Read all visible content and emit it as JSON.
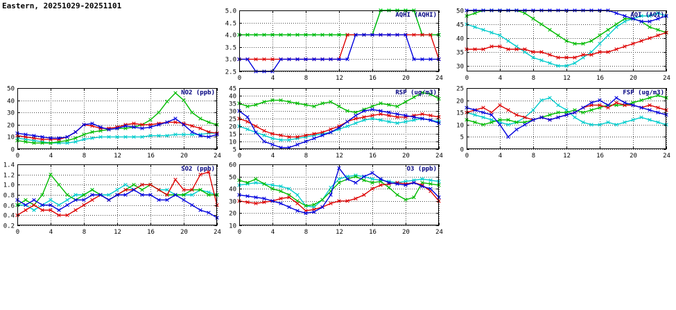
{
  "page_title": "Eastern, 20251029-20251101",
  "colors": {
    "chart_title": "#000080",
    "axis_text": "#000000",
    "grid": "#444444",
    "border": "#000000",
    "background": "#ffffff",
    "series": {
      "green": "#00bb00",
      "red": "#dd0000",
      "blue": "#0000dd",
      "cyan": "#00cccc"
    }
  },
  "hours": [
    0,
    1,
    2,
    3,
    4,
    5,
    6,
    7,
    8,
    9,
    10,
    11,
    12,
    13,
    14,
    15,
    16,
    17,
    18,
    19,
    20,
    21,
    22,
    23,
    24
  ],
  "chart_data": [
    {
      "id": "aqhi",
      "type": "line",
      "title": "AQHI (AQHI)",
      "xlabel": "",
      "ylabel": "",
      "legend": "none",
      "grid": "dotted",
      "xlim": [
        0,
        24
      ],
      "xticks": [
        0,
        4,
        8,
        12,
        16,
        20,
        24
      ],
      "ylim": [
        2.5,
        5.0
      ],
      "yticks": [
        2.5,
        3.0,
        3.5,
        4.0,
        4.5,
        5.0
      ],
      "ytick_labels": [
        "2.5",
        "3.0",
        "3.5",
        "4.0",
        "4.5",
        "5.0"
      ],
      "series": [
        {
          "name": "cyan",
          "color": "#00cccc",
          "values": [
            4,
            4,
            4,
            4,
            4,
            4,
            4,
            4,
            4,
            4,
            4,
            4,
            4,
            4,
            4,
            4,
            4,
            5,
            5,
            5,
            5,
            5,
            4,
            4,
            4
          ]
        },
        {
          "name": "green",
          "color": "#00bb00",
          "values": [
            4,
            4,
            4,
            4,
            4,
            4,
            4,
            4,
            4,
            4,
            4,
            4,
            4,
            4,
            4,
            4,
            4,
            5,
            5,
            5,
            5,
            5,
            4,
            4,
            4
          ]
        },
        {
          "name": "red",
          "color": "#dd0000",
          "values": [
            3,
            3,
            3,
            3,
            3,
            3,
            3,
            3,
            3,
            3,
            3,
            3,
            3,
            4,
            4,
            4,
            4,
            4,
            4,
            4,
            4,
            4,
            4,
            4,
            3
          ]
        },
        {
          "name": "blue",
          "color": "#0000dd",
          "values": [
            3,
            3,
            2.5,
            2.5,
            2.5,
            3,
            3,
            3,
            3,
            3,
            3,
            3,
            3,
            3,
            4,
            4,
            4,
            4,
            4,
            4,
            4,
            3,
            3,
            3,
            3
          ]
        }
      ]
    },
    {
      "id": "aqi",
      "type": "line",
      "title": "AQI (AQI)",
      "xlabel": "",
      "ylabel": "",
      "legend": "none",
      "grid": "dotted",
      "xlim": [
        0,
        24
      ],
      "xticks": [
        0,
        4,
        8,
        12,
        16,
        20,
        24
      ],
      "ylim": [
        28,
        50
      ],
      "yticks": [
        30,
        35,
        40,
        45,
        50
      ],
      "ytick_labels": [
        "30",
        "35",
        "40",
        "45",
        "50"
      ],
      "series": [
        {
          "name": "cyan",
          "color": "#00cccc",
          "values": [
            45,
            44,
            43,
            42,
            41,
            39,
            37,
            35,
            33,
            32,
            31,
            30,
            30,
            31,
            33,
            35,
            38,
            41,
            44,
            46,
            47,
            48,
            48,
            49,
            48
          ]
        },
        {
          "name": "green",
          "color": "#00bb00",
          "values": [
            48,
            49,
            50,
            50,
            50,
            50,
            50,
            49,
            47,
            45,
            43,
            41,
            39,
            38,
            38,
            39,
            41,
            43,
            45,
            47,
            47,
            46,
            44,
            43,
            42
          ]
        },
        {
          "name": "red",
          "color": "#dd0000",
          "values": [
            36,
            36,
            36,
            37,
            37,
            36,
            36,
            36,
            35,
            35,
            34,
            33,
            33,
            33,
            34,
            34,
            35,
            35,
            36,
            37,
            38,
            39,
            40,
            41,
            42
          ]
        },
        {
          "name": "blue",
          "color": "#0000dd",
          "values": [
            50,
            50,
            50,
            50,
            50,
            50,
            50,
            50,
            50,
            50,
            50,
            50,
            50,
            50,
            50,
            50,
            50,
            50,
            49,
            48,
            47,
            46,
            46,
            47,
            48
          ]
        }
      ]
    },
    {
      "id": "no2",
      "type": "line",
      "title": "NO2 (ppb)",
      "xlabel": "",
      "ylabel": "",
      "legend": "none",
      "grid": "dotted",
      "xlim": [
        0,
        24
      ],
      "xticks": [
        0,
        4,
        8,
        12,
        16,
        20,
        24
      ],
      "ylim": [
        0,
        50
      ],
      "yticks": [
        0,
        10,
        20,
        30,
        40,
        50
      ],
      "ytick_labels": [
        "0",
        "10",
        "20",
        "30",
        "40",
        "50"
      ],
      "series": [
        {
          "name": "cyan",
          "color": "#00cccc",
          "values": [
            9,
            8,
            7,
            6,
            5,
            5,
            5,
            6,
            8,
            9,
            10,
            10,
            10,
            10,
            10,
            10,
            11,
            11,
            11,
            12,
            12,
            12,
            12,
            13,
            13
          ]
        },
        {
          "name": "green",
          "color": "#00bb00",
          "values": [
            7,
            6,
            5,
            5,
            5,
            6,
            7,
            9,
            12,
            14,
            15,
            16,
            17,
            17,
            18,
            20,
            24,
            30,
            39,
            46,
            40,
            30,
            25,
            22,
            20
          ]
        },
        {
          "name": "red",
          "color": "#dd0000",
          "values": [
            11,
            10,
            9,
            8,
            8,
            8,
            10,
            14,
            20,
            19,
            17,
            17,
            18,
            20,
            21,
            20,
            20,
            21,
            22,
            22,
            21,
            19,
            17,
            14,
            13
          ]
        },
        {
          "name": "blue",
          "color": "#0000dd",
          "values": [
            13,
            12,
            11,
            10,
            9,
            9,
            10,
            14,
            20,
            21,
            18,
            16,
            17,
            19,
            18,
            17,
            18,
            20,
            22,
            25,
            20,
            14,
            11,
            10,
            12
          ]
        }
      ]
    },
    {
      "id": "rsp",
      "type": "line",
      "title": "RSP (ug/m3)",
      "xlabel": "",
      "ylabel": "",
      "legend": "none",
      "grid": "dotted",
      "xlim": [
        0,
        24
      ],
      "xticks": [
        0,
        4,
        8,
        12,
        16,
        20,
        24
      ],
      "ylim": [
        5,
        45
      ],
      "yticks": [
        5,
        10,
        15,
        20,
        25,
        30,
        35,
        40,
        45
      ],
      "ytick_labels": [
        "5",
        "10",
        "15",
        "20",
        "25",
        "30",
        "35",
        "40",
        "45"
      ],
      "series": [
        {
          "name": "cyan",
          "color": "#00cccc",
          "values": [
            20,
            18,
            16,
            14,
            12,
            11,
            11,
            12,
            13,
            14,
            15,
            16,
            18,
            20,
            22,
            24,
            25,
            24,
            23,
            22,
            23,
            24,
            25,
            24,
            23
          ]
        },
        {
          "name": "green",
          "color": "#00bb00",
          "values": [
            35,
            33,
            34,
            36,
            37,
            37,
            36,
            35,
            34,
            33,
            35,
            36,
            33,
            30,
            29,
            31,
            33,
            35,
            34,
            33,
            36,
            39,
            42,
            41,
            38
          ]
        },
        {
          "name": "red",
          "color": "#dd0000",
          "values": [
            25,
            23,
            20,
            17,
            15,
            14,
            13,
            13,
            14,
            15,
            16,
            18,
            20,
            23,
            25,
            26,
            27,
            28,
            27,
            26,
            26,
            27,
            28,
            27,
            26
          ]
        },
        {
          "name": "blue",
          "color": "#0000dd",
          "values": [
            30,
            26,
            16,
            10,
            8,
            6,
            6,
            8,
            10,
            12,
            14,
            16,
            19,
            23,
            27,
            30,
            31,
            30,
            29,
            28,
            27,
            26,
            25,
            24,
            22
          ]
        }
      ]
    },
    {
      "id": "fsp",
      "type": "line",
      "title": "FSP (ug/m3)",
      "xlabel": "",
      "ylabel": "",
      "legend": "none",
      "grid": "dotted",
      "xlim": [
        0,
        24
      ],
      "xticks": [
        0,
        4,
        8,
        12,
        16,
        20,
        24
      ],
      "ylim": [
        0,
        25
      ],
      "yticks": [
        0,
        5,
        10,
        15,
        20,
        25
      ],
      "ytick_labels": [
        "0",
        "5",
        "10",
        "15",
        "20",
        "25"
      ],
      "series": [
        {
          "name": "cyan",
          "color": "#00cccc",
          "values": [
            15,
            14,
            13,
            12,
            11,
            10,
            11,
            13,
            16,
            20,
            21,
            18,
            16,
            13,
            11,
            10,
            10,
            11,
            10,
            11,
            12,
            13,
            12,
            11,
            10
          ]
        },
        {
          "name": "green",
          "color": "#00bb00",
          "values": [
            12,
            11,
            10,
            11,
            12,
            12,
            11,
            11,
            12,
            13,
            14,
            15,
            15,
            16,
            15,
            16,
            17,
            18,
            18,
            18,
            19,
            20,
            21,
            22,
            21
          ]
        },
        {
          "name": "red",
          "color": "#dd0000",
          "values": [
            15,
            16,
            17,
            15,
            18,
            16,
            14,
            13,
            12,
            13,
            12,
            13,
            14,
            15,
            17,
            18,
            18,
            17,
            19,
            18,
            18,
            17,
            18,
            17,
            16
          ]
        },
        {
          "name": "blue",
          "color": "#0000dd",
          "values": [
            17,
            16,
            15,
            14,
            10,
            5,
            8,
            10,
            12,
            13,
            12,
            13,
            14,
            15,
            17,
            19,
            20,
            18,
            21,
            19,
            18,
            17,
            16,
            15,
            14
          ]
        }
      ]
    },
    {
      "id": "so2",
      "type": "line",
      "title": "SO2 (ppb)",
      "xlabel": "",
      "ylabel": "",
      "legend": "none",
      "grid": "dotted",
      "xlim": [
        0,
        24
      ],
      "xticks": [
        0,
        4,
        8,
        12,
        16,
        20,
        24
      ],
      "ylim": [
        0.2,
        1.4
      ],
      "yticks": [
        0.2,
        0.4,
        0.6,
        0.8,
        1.0,
        1.2,
        1.4
      ],
      "ytick_labels": [
        "0.2",
        "0.4",
        "0.6",
        "0.8",
        "1.0",
        "1.2",
        "1.4"
      ],
      "series": [
        {
          "name": "cyan",
          "color": "#00cccc",
          "values": [
            0.6,
            0.6,
            0.5,
            0.6,
            0.7,
            0.6,
            0.7,
            0.8,
            0.8,
            0.9,
            0.8,
            0.8,
            0.9,
            1.0,
            0.9,
            1.0,
            1.0,
            0.9,
            0.9,
            0.8,
            0.8,
            0.8,
            0.9,
            0.85,
            0.8
          ]
        },
        {
          "name": "green",
          "color": "#00bb00",
          "values": [
            0.6,
            0.7,
            0.6,
            0.8,
            1.2,
            1.0,
            0.8,
            0.7,
            0.8,
            0.9,
            0.8,
            0.7,
            0.8,
            0.9,
            1.0,
            0.9,
            1.0,
            0.9,
            0.8,
            0.8,
            0.8,
            0.9,
            0.9,
            0.8,
            0.8
          ]
        },
        {
          "name": "red",
          "color": "#dd0000",
          "values": [
            0.4,
            0.5,
            0.6,
            0.5,
            0.5,
            0.4,
            0.4,
            0.5,
            0.6,
            0.7,
            0.8,
            0.7,
            0.8,
            0.9,
            0.9,
            1.0,
            1.0,
            0.9,
            0.8,
            1.1,
            0.9,
            0.9,
            1.2,
            1.25,
            0.6
          ]
        },
        {
          "name": "blue",
          "color": "#0000dd",
          "values": [
            0.7,
            0.6,
            0.7,
            0.6,
            0.6,
            0.5,
            0.6,
            0.7,
            0.7,
            0.8,
            0.8,
            0.7,
            0.8,
            0.8,
            0.9,
            0.8,
            0.8,
            0.7,
            0.7,
            0.8,
            0.7,
            0.6,
            0.5,
            0.45,
            0.35
          ]
        }
      ]
    },
    {
      "id": "o3",
      "type": "line",
      "title": "O3 (ppb)",
      "xlabel": "",
      "ylabel": "",
      "legend": "none",
      "grid": "dotted",
      "xlim": [
        0,
        24
      ],
      "xticks": [
        0,
        4,
        8,
        12,
        16,
        20,
        24
      ],
      "ylim": [
        10,
        60
      ],
      "yticks": [
        10,
        20,
        30,
        40,
        50,
        60
      ],
      "ytick_labels": [
        "10",
        "20",
        "30",
        "40",
        "50",
        "60"
      ],
      "series": [
        {
          "name": "cyan",
          "color": "#00cccc",
          "values": [
            43,
            44,
            45,
            44,
            43,
            42,
            40,
            35,
            26,
            25,
            31,
            41,
            48,
            50,
            51,
            50,
            48,
            47,
            46,
            45,
            46,
            47,
            48,
            47,
            46
          ]
        },
        {
          "name": "green",
          "color": "#00bb00",
          "values": [
            47,
            45,
            48,
            44,
            40,
            38,
            35,
            30,
            26,
            27,
            31,
            38,
            45,
            48,
            50,
            47,
            45,
            46,
            41,
            35,
            31,
            33,
            45,
            44,
            43
          ]
        },
        {
          "name": "red",
          "color": "#dd0000",
          "values": [
            30,
            29,
            28,
            29,
            30,
            32,
            33,
            28,
            22,
            23,
            25,
            28,
            30,
            30,
            32,
            35,
            40,
            43,
            44,
            45,
            44,
            45,
            43,
            38,
            30
          ]
        },
        {
          "name": "blue",
          "color": "#0000dd",
          "values": [
            35,
            34,
            33,
            32,
            30,
            28,
            25,
            22,
            20,
            21,
            25,
            35,
            57,
            48,
            45,
            50,
            53,
            48,
            45,
            44,
            43,
            45,
            42,
            40,
            33
          ]
        }
      ]
    }
  ]
}
